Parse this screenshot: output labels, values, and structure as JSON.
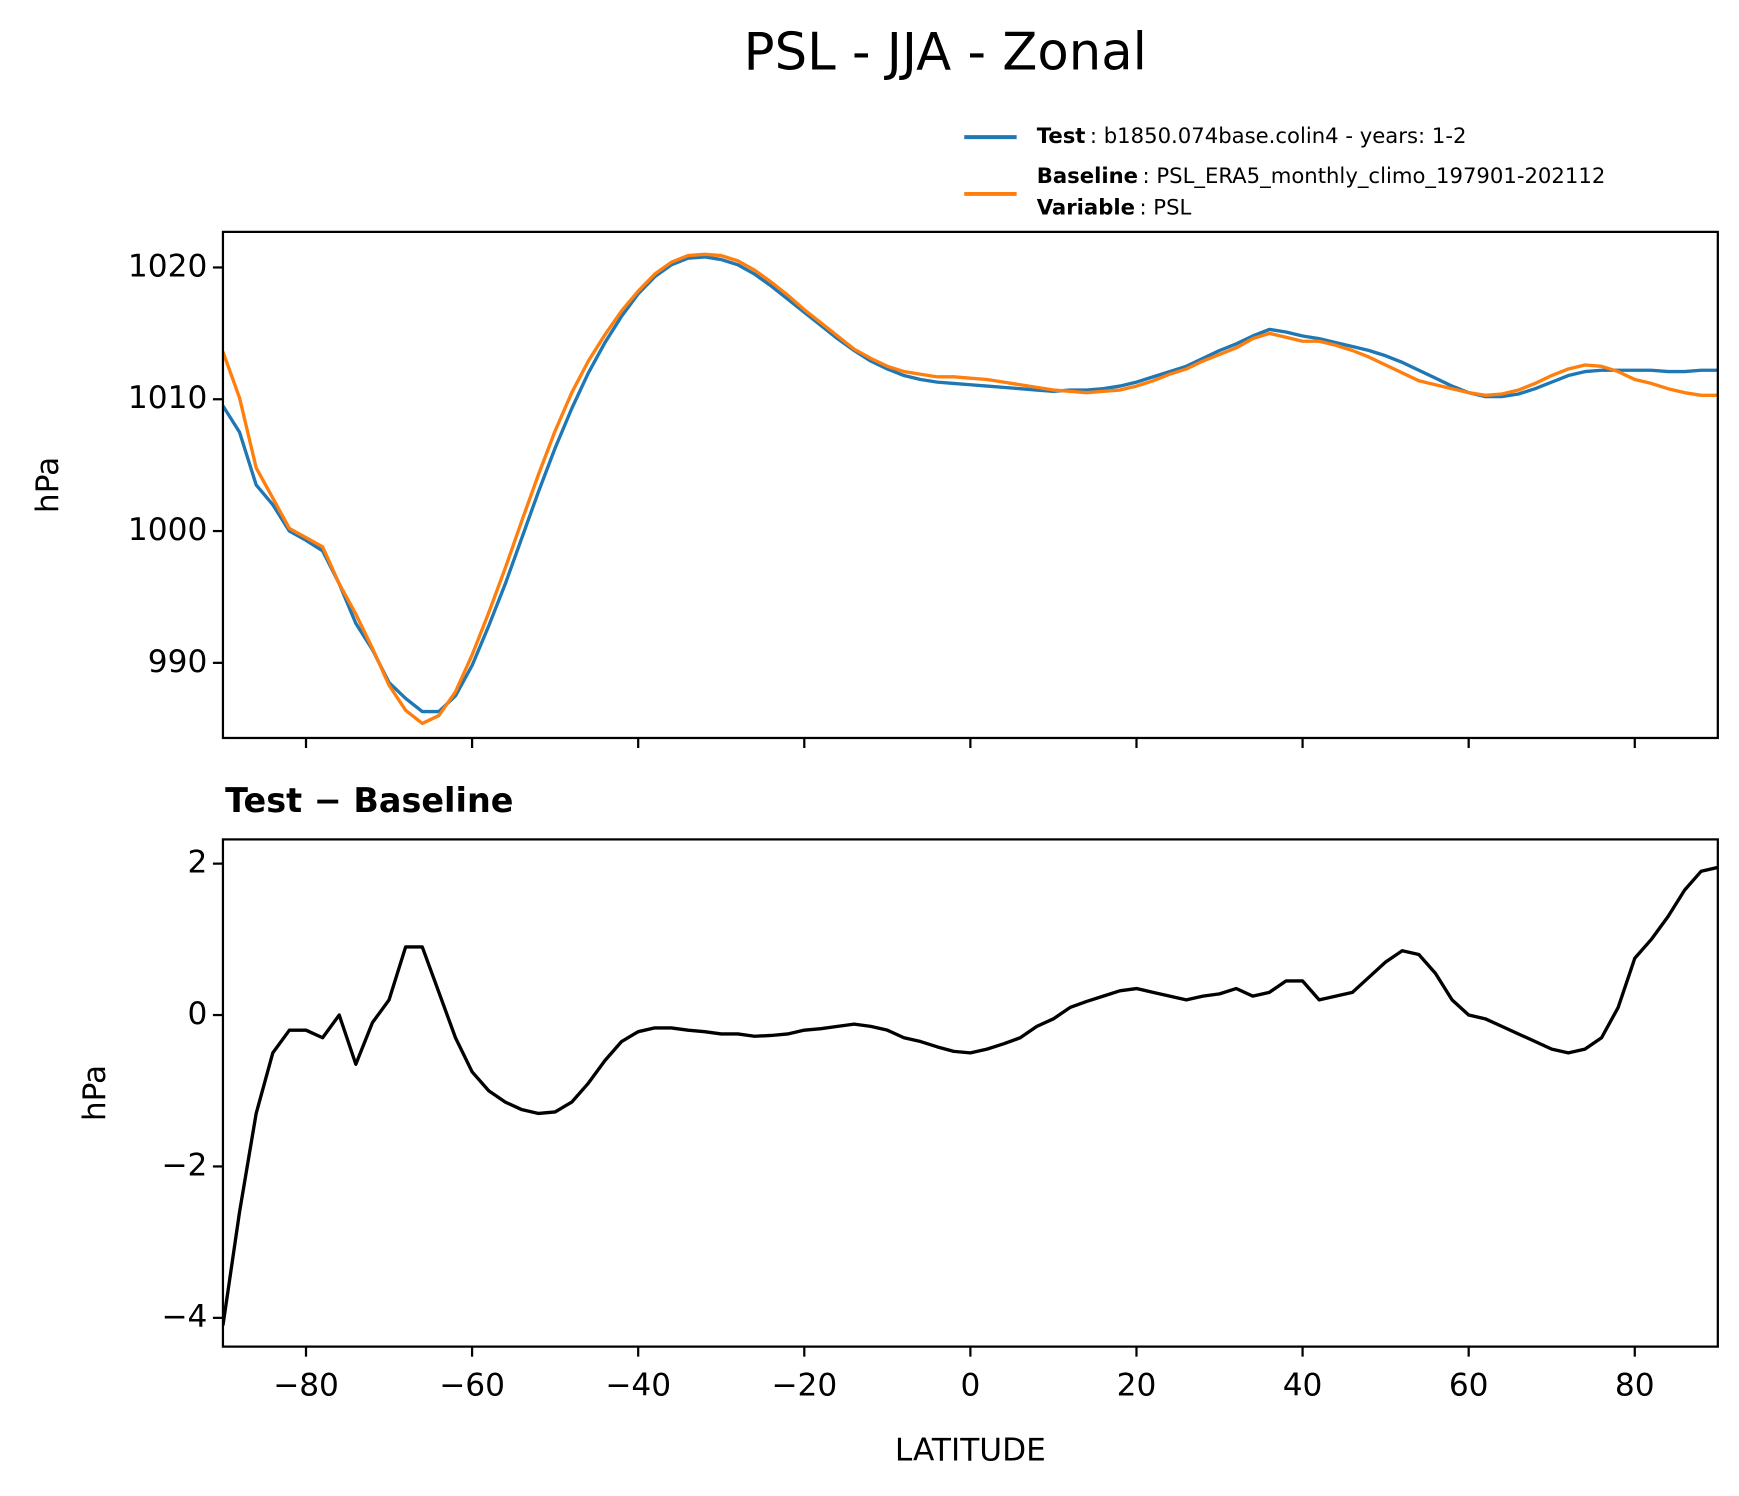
{
  "chart_data": [
    {
      "type": "line",
      "title": "PSL - JJA - Zonal",
      "ylabel": "hPa",
      "x": [
        -90,
        -88,
        -86,
        -84,
        -82,
        -80,
        -78,
        -76,
        -74,
        -72,
        -70,
        -68,
        -66,
        -64,
        -62,
        -60,
        -58,
        -56,
        -54,
        -52,
        -50,
        -48,
        -46,
        -44,
        -42,
        -40,
        -38,
        -36,
        -34,
        -32,
        -30,
        -28,
        -26,
        -24,
        -22,
        -20,
        -18,
        -16,
        -14,
        -12,
        -10,
        -8,
        -6,
        -4,
        -2,
        0,
        2,
        4,
        6,
        8,
        10,
        12,
        14,
        16,
        18,
        20,
        22,
        24,
        26,
        28,
        30,
        32,
        34,
        36,
        38,
        40,
        42,
        44,
        46,
        48,
        50,
        52,
        54,
        56,
        58,
        60,
        62,
        64,
        66,
        68,
        70,
        72,
        74,
        76,
        78,
        80,
        82,
        84,
        86,
        88,
        90
      ],
      "series": [
        {
          "name": "Test",
          "detail": ": b1850.074base.colin4 - years: 1-2",
          "color": "#1f77b4",
          "values": [
            1009.5,
            1007.5,
            1003.5,
            1002,
            1000,
            999.3,
            998.5,
            996,
            993,
            991,
            988.5,
            987.3,
            986.3,
            986.3,
            987.5,
            989.8,
            992.8,
            996,
            999.5,
            1003,
            1006.3,
            1009.3,
            1012,
            1014.3,
            1016.3,
            1018,
            1019.3,
            1020.2,
            1020.7,
            1020.8,
            1020.6,
            1020.2,
            1019.5,
            1018.6,
            1017.6,
            1016.6,
            1015.6,
            1014.6,
            1013.7,
            1012.9,
            1012.3,
            1011.8,
            1011.5,
            1011.3,
            1011.2,
            1011.1,
            1011.0,
            1010.9,
            1010.8,
            1010.7,
            1010.6,
            1010.7,
            1010.7,
            1010.8,
            1011.0,
            1011.3,
            1011.7,
            1012.1,
            1012.5,
            1013.1,
            1013.7,
            1014.2,
            1014.8,
            1015.3,
            1015.1,
            1014.8,
            1014.6,
            1014.3,
            1014.0,
            1013.7,
            1013.3,
            1012.8,
            1012.2,
            1011.6,
            1011.0,
            1010.5,
            1010.2,
            1010.2,
            1010.4,
            1010.8,
            1011.3,
            1011.8,
            1012.1,
            1012.2,
            1012.2,
            1012.2,
            1012.2,
            1012.1,
            1012.1,
            1012.2,
            1012.2
          ]
        },
        {
          "name": "Baseline",
          "detail": ": PSL_ERA5_monthly_climo_197901-202112",
          "color": "#ff7f0e",
          "values": [
            1013.6,
            1010.1,
            1004.8,
            1002.5,
            1000.2,
            999.5,
            998.8,
            996.0,
            993.7,
            991.1,
            988.3,
            986.4,
            985.4,
            986.0,
            987.8,
            990.6,
            993.8,
            997.2,
            1000.8,
            1004.3,
            1007.6,
            1010.5,
            1012.9,
            1014.9,
            1016.7,
            1018.2,
            1019.5,
            1020.4,
            1020.9,
            1021.0,
            1020.9,
            1020.5,
            1019.8,
            1018.9,
            1017.9,
            1016.8,
            1015.8,
            1014.8,
            1013.8,
            1013.1,
            1012.5,
            1012.1,
            1011.9,
            1011.7,
            1011.7,
            1011.6,
            1011.5,
            1011.3,
            1011.1,
            1010.9,
            1010.7,
            1010.6,
            1010.5,
            1010.6,
            1010.7,
            1011.0,
            1011.4,
            1011.9,
            1012.3,
            1012.9,
            1013.4,
            1013.9,
            1014.6,
            1015.0,
            1014.7,
            1014.4,
            1014.4,
            1014.1,
            1013.7,
            1013.2,
            1012.6,
            1012.0,
            1011.4,
            1011.1,
            1010.8,
            1010.5,
            1010.3,
            1010.4,
            1010.7,
            1011.2,
            1011.8,
            1012.3,
            1012.6,
            1012.5,
            1012.1,
            1011.5,
            1011.2,
            1010.8,
            1010.5,
            1010.3,
            1010.3
          ]
        }
      ],
      "legend_extra": {
        "name": "Variable",
        "detail": ": PSL"
      },
      "xlim": [
        -90,
        90
      ],
      "xticks": [
        -80,
        -60,
        -40,
        -20,
        0,
        20,
        40,
        60,
        80
      ],
      "ylim": [
        984.3,
        1022.7
      ],
      "yticks": [
        990,
        1000,
        1010,
        1020
      ]
    },
    {
      "type": "line",
      "title": "Test − Baseline",
      "ylabel": "hPa",
      "xlabel": "LATITUDE",
      "color": "#000000",
      "x": [
        -90,
        -88,
        -86,
        -84,
        -82,
        -80,
        -78,
        -76,
        -74,
        -72,
        -70,
        -68,
        -66,
        -64,
        -62,
        -60,
        -58,
        -56,
        -54,
        -52,
        -50,
        -48,
        -46,
        -44,
        -42,
        -40,
        -38,
        -36,
        -34,
        -32,
        -30,
        -28,
        -26,
        -24,
        -22,
        -20,
        -18,
        -16,
        -14,
        -12,
        -10,
        -8,
        -6,
        -4,
        -2,
        0,
        2,
        4,
        6,
        8,
        10,
        12,
        14,
        16,
        18,
        20,
        22,
        24,
        26,
        28,
        30,
        32,
        34,
        36,
        38,
        40,
        42,
        44,
        46,
        48,
        50,
        52,
        54,
        56,
        58,
        60,
        62,
        64,
        66,
        68,
        70,
        72,
        74,
        76,
        78,
        80,
        82,
        84,
        86,
        88,
        90
      ],
      "values": [
        -4.1,
        -2.6,
        -1.3,
        -0.5,
        -0.2,
        -0.2,
        -0.3,
        0.0,
        -0.65,
        -0.1,
        0.2,
        0.9,
        0.9,
        0.3,
        -0.3,
        -0.75,
        -1.0,
        -1.15,
        -1.25,
        -1.3,
        -1.28,
        -1.15,
        -0.9,
        -0.6,
        -0.35,
        -0.22,
        -0.17,
        -0.17,
        -0.2,
        -0.22,
        -0.25,
        -0.25,
        -0.28,
        -0.27,
        -0.25,
        -0.2,
        -0.18,
        -0.15,
        -0.12,
        -0.15,
        -0.2,
        -0.3,
        -0.35,
        -0.42,
        -0.48,
        -0.5,
        -0.45,
        -0.38,
        -0.3,
        -0.15,
        -0.05,
        0.1,
        0.18,
        0.25,
        0.32,
        0.35,
        0.3,
        0.25,
        0.2,
        0.25,
        0.28,
        0.35,
        0.25,
        0.3,
        0.45,
        0.45,
        0.2,
        0.25,
        0.3,
        0.5,
        0.7,
        0.85,
        0.8,
        0.55,
        0.2,
        0.0,
        -0.05,
        -0.15,
        -0.25,
        -0.35,
        -0.45,
        -0.5,
        -0.45,
        -0.3,
        0.1,
        0.75,
        1.0,
        1.3,
        1.65,
        1.9,
        1.95
      ],
      "xlim": [
        -90,
        90
      ],
      "xticks": [
        {
          "value": -80,
          "label": "−80"
        },
        {
          "value": -60,
          "label": "−60"
        },
        {
          "value": -40,
          "label": "−40"
        },
        {
          "value": -20,
          "label": "−20"
        },
        0,
        20,
        40,
        60,
        80
      ],
      "ylim": [
        -4.38,
        2.32
      ],
      "yticks": [
        {
          "value": -4,
          "label": "−4"
        },
        {
          "value": -2,
          "label": "−2"
        },
        0,
        2
      ]
    }
  ]
}
